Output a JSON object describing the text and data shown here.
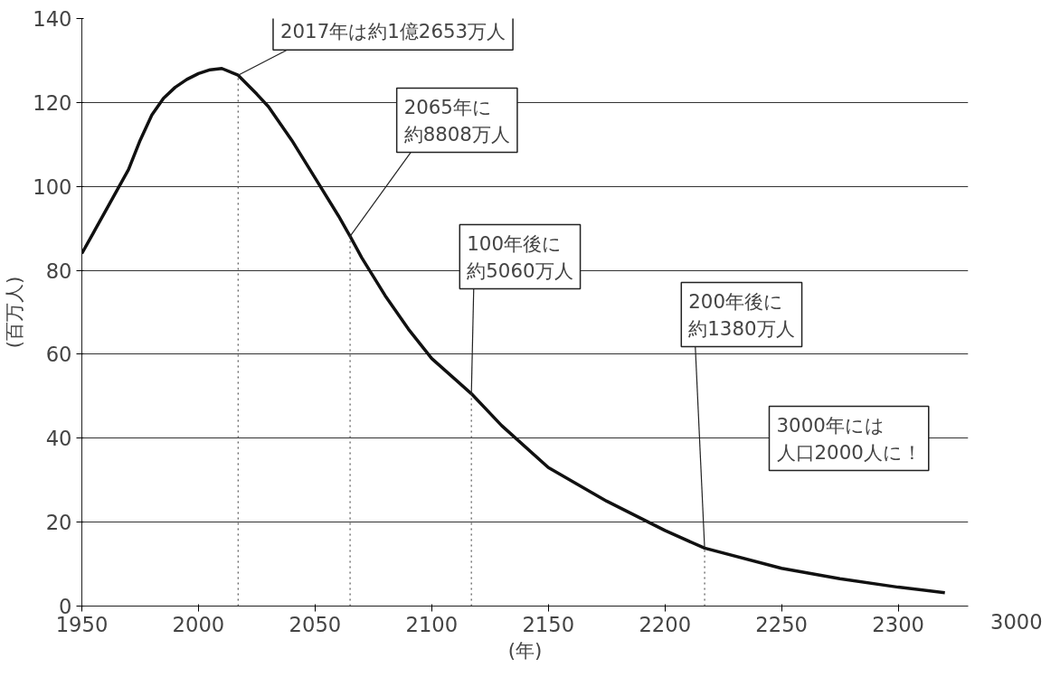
{
  "chart_data": {
    "type": "line",
    "x": [
      1950,
      1955,
      1960,
      1965,
      1970,
      1975,
      1980,
      1985,
      1990,
      1995,
      2000,
      2005,
      2010,
      2017,
      2025,
      2030,
      2040,
      2050,
      2060,
      2065,
      2070,
      2080,
      2090,
      2100,
      2117,
      2130,
      2150,
      2175,
      2200,
      2217,
      2250,
      2275,
      2300,
      2320
    ],
    "series": [
      {
        "color": "#111111",
        "values": [
          84,
          89,
          94,
          99,
          104,
          111,
          117,
          121,
          123.6,
          125.5,
          126.9,
          127.8,
          128.1,
          126.5,
          122,
          119,
          111,
          102,
          93,
          88.1,
          83,
          74,
          66,
          59,
          50.6,
          43,
          33,
          25,
          18,
          13.8,
          9,
          6.5,
          4.5,
          3.2
        ]
      }
    ],
    "ylabel": "(百万人)",
    "xlabel": "(年)",
    "xlim": [
      1950,
      2330
    ],
    "ylim": [
      0,
      140
    ],
    "xticks": [
      1950,
      2000,
      2050,
      2100,
      2150,
      2200,
      2250,
      2300
    ],
    "yticks": [
      0,
      20,
      40,
      60,
      80,
      100,
      120,
      140
    ],
    "grid": "y",
    "marker": "none",
    "line_style": "solid",
    "ref_lines": [
      {
        "axis": "x",
        "value": 2017,
        "label": null,
        "color": "#555555",
        "line_style": "dotted"
      },
      {
        "axis": "x",
        "value": 2065,
        "label": null,
        "color": "#555555",
        "line_style": "dotted"
      },
      {
        "axis": "x",
        "value": 2117,
        "label": null,
        "color": "#555555",
        "line_style": "dotted"
      },
      {
        "axis": "x",
        "value": 2217,
        "label": null,
        "color": "#555555",
        "line_style": "dotted"
      }
    ],
    "annotations": [
      {
        "text": "2017年は約1億2653万人",
        "x": 2017,
        "y": 126.5
      },
      {
        "text": "2065年に約8808万人",
        "x": 2065,
        "y": 88.1
      },
      {
        "text": "100年後に約5060万人",
        "x": 2117,
        "y": 50.6
      },
      {
        "text": "200年後に約1380万人",
        "x": 2217,
        "y": 13.8
      },
      "3000年には人口2000人に！",
      "3000"
    ]
  }
}
